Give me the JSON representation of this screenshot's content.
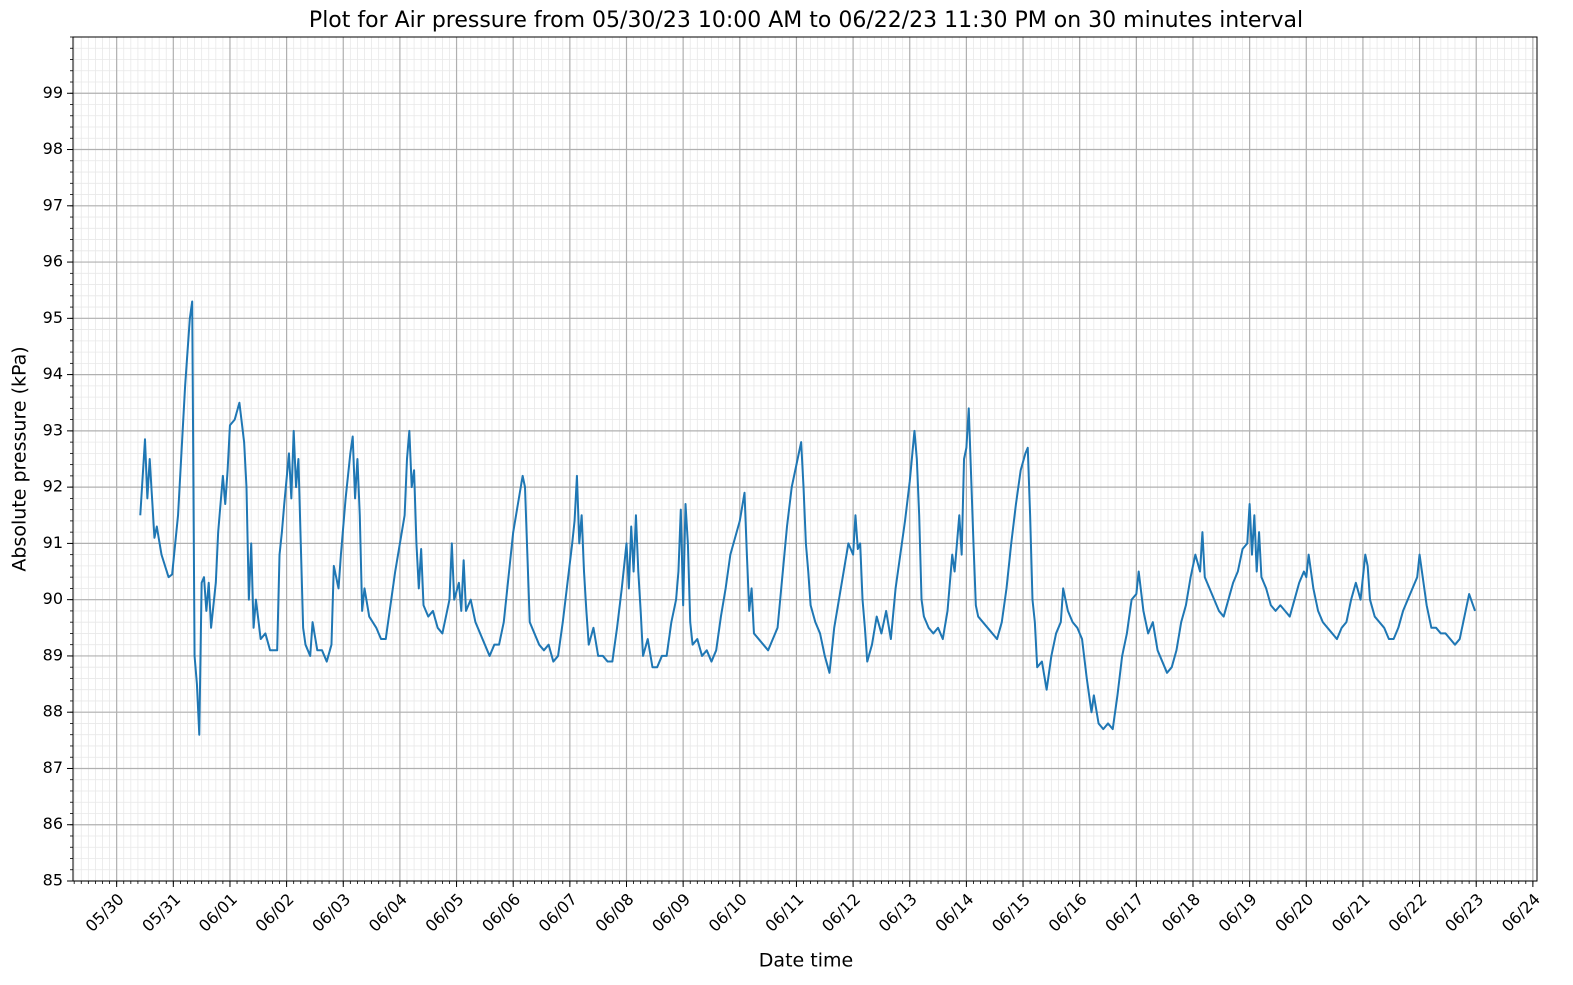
{
  "chart_data": {
    "type": "line",
    "title": "Plot for Air pressure from 05/30/23 10:00 AM to 06/22/23 11:30 PM on 30 minutes interval",
    "x_label": "Date time",
    "y_label": "Absolute pressure (kPa)",
    "color": "#1f77b4",
    "grid": true,
    "minor_grid": true,
    "xlim": [
      "05/29 05:30",
      "06/24 01:45"
    ],
    "xticks": [
      "05/30",
      "05/31",
      "06/01",
      "06/02",
      "06/03",
      "06/04",
      "06/05",
      "06/06",
      "06/07",
      "06/08",
      "06/09",
      "06/10",
      "06/11",
      "06/12",
      "06/13",
      "06/14",
      "06/15",
      "06/16",
      "06/17",
      "06/18",
      "06/19",
      "06/20",
      "06/21",
      "06/22",
      "06/23",
      "06/24"
    ],
    "ylim": [
      85,
      100
    ],
    "yticks": [
      85,
      86,
      87,
      88,
      89,
      90,
      91,
      92,
      93,
      94,
      95,
      96,
      97,
      98,
      99
    ],
    "x": [
      "05/30 10:00",
      "05/30 12:00",
      "05/30 13:00",
      "05/30 14:00",
      "05/30 16:00",
      "05/30 17:00",
      "05/30 19:00",
      "05/30 22:00",
      "05/30 23:30",
      "05/31 02:00",
      "05/31 05:00",
      "05/31 07:00",
      "05/31 08:00",
      "05/31 09:00",
      "05/31 10:00",
      "05/31 11:00",
      "05/31 12:00",
      "05/31 13:00",
      "05/31 14:00",
      "05/31 15:00",
      "05/31 16:00",
      "05/31 18:00",
      "05/31 19:00",
      "05/31 21:00",
      "05/31 22:00",
      "05/31 23:00",
      "06/01 00:00",
      "06/01 02:00",
      "06/01 04:00",
      "06/01 06:00",
      "06/01 07:00",
      "06/01 08:00",
      "06/01 09:00",
      "06/01 10:00",
      "06/01 11:00",
      "06/01 13:00",
      "06/01 15:00",
      "06/01 17:00",
      "06/01 20:00",
      "06/01 21:00",
      "06/01 22:00",
      "06/01 23:00",
      "06/02 01:00",
      "06/02 02:00",
      "06/02 03:00",
      "06/02 04:00",
      "06/02 05:00",
      "06/02 06:00",
      "06/02 07:00",
      "06/02 08:00",
      "06/02 10:00",
      "06/02 11:00",
      "06/02 13:00",
      "06/02 15:00",
      "06/02 17:00",
      "06/02 19:00",
      "06/02 20:00",
      "06/02 22:00",
      "06/02 23:00",
      "06/03 01:00",
      "06/03 03:00",
      "06/03 04:00",
      "06/03 05:00",
      "06/03 06:00",
      "06/03 07:00",
      "06/03 08:00",
      "06/03 09:00",
      "06/03 11:00",
      "06/03 14:00",
      "06/03 16:00",
      "06/03 18:00",
      "06/03 20:00",
      "06/03 22:00",
      "06/04 00:00",
      "06/04 02:00",
      "06/04 03:00",
      "06/04 04:00",
      "06/04 05:00",
      "06/04 06:00",
      "06/04 07:00",
      "06/04 08:00",
      "06/04 09:00",
      "06/04 10:00",
      "06/04 12:00",
      "06/04 14:00",
      "06/04 16:00",
      "06/04 18:00",
      "06/04 21:00",
      "06/04 22:00",
      "06/04 23:00",
      "06/05 01:00",
      "06/05 02:00",
      "06/05 03:00",
      "06/05 04:00",
      "06/05 06:00",
      "06/05 08:00",
      "06/05 10:00",
      "06/05 12:00",
      "06/05 14:00",
      "06/05 16:00",
      "06/05 18:00",
      "06/05 20:00",
      "06/05 22:00",
      "06/06 00:00",
      "06/06 02:00",
      "06/06 04:00",
      "06/06 05:00",
      "06/06 06:00",
      "06/06 07:00",
      "06/06 09:00",
      "06/06 11:00",
      "06/06 13:00",
      "06/06 15:00",
      "06/06 17:00",
      "06/06 19:00",
      "06/06 21:00",
      "06/06 23:00",
      "06/07 01:00",
      "06/07 02:00",
      "06/07 03:00",
      "06/07 04:00",
      "06/07 05:00",
      "06/07 06:00",
      "06/07 07:00",
      "06/07 08:00",
      "06/07 10:00",
      "06/07 12:00",
      "06/07 14:00",
      "06/07 16:00",
      "06/07 18:00",
      "06/07 20:00",
      "06/07 22:00",
      "06/08 00:00",
      "06/08 01:00",
      "06/08 02:00",
      "06/08 03:00",
      "06/08 04:00",
      "06/08 05:00",
      "06/08 06:00",
      "06/08 07:00",
      "06/08 09:00",
      "06/08 11:00",
      "06/08 13:00",
      "06/08 15:00",
      "06/08 17:00",
      "06/08 19:00",
      "06/08 21:00",
      "06/08 22:00",
      "06/08 23:00",
      "06/09 00:00",
      "06/09 01:00",
      "06/09 02:00",
      "06/09 03:00",
      "06/09 04:00",
      "06/09 06:00",
      "06/09 08:00",
      "06/09 10:00",
      "06/09 12:00",
      "06/09 14:00",
      "06/09 16:00",
      "06/09 18:00",
      "06/09 20:00",
      "06/09 22:00",
      "06/10 00:00",
      "06/10 02:00",
      "06/10 03:00",
      "06/10 04:00",
      "06/10 05:00",
      "06/10 06:00",
      "06/10 08:00",
      "06/10 10:00",
      "06/10 12:00",
      "06/10 14:00",
      "06/10 16:00",
      "06/10 18:00",
      "06/10 20:00",
      "06/10 22:00",
      "06/11 00:00",
      "06/11 02:00",
      "06/11 03:00",
      "06/11 04:00",
      "06/11 05:00",
      "06/11 06:00",
      "06/11 08:00",
      "06/11 10:00",
      "06/11 12:00",
      "06/11 14:00",
      "06/11 16:00",
      "06/11 18:00",
      "06/11 20:00",
      "06/11 22:00",
      "06/12 00:00",
      "06/12 01:00",
      "06/12 02:00",
      "06/12 03:00",
      "06/12 04:00",
      "06/12 05:00",
      "06/12 06:00",
      "06/12 08:00",
      "06/12 10:00",
      "06/12 12:00",
      "06/12 14:00",
      "06/12 16:00",
      "06/12 18:00",
      "06/12 20:00",
      "06/12 22:00",
      "06/13 00:00",
      "06/13 02:00",
      "06/13 03:00",
      "06/13 04:00",
      "06/13 05:00",
      "06/13 06:00",
      "06/13 08:00",
      "06/13 10:00",
      "06/13 12:00",
      "06/13 14:00",
      "06/13 16:00",
      "06/13 18:00",
      "06/13 19:00",
      "06/13 21:00",
      "06/13 22:00",
      "06/13 23:00",
      "06/14 00:00",
      "06/14 01:00",
      "06/14 02:00",
      "06/14 03:00",
      "06/14 04:00",
      "06/14 05:00",
      "06/14 07:00",
      "06/14 09:00",
      "06/14 11:00",
      "06/14 13:00",
      "06/14 15:00",
      "06/14 17:00",
      "06/14 19:00",
      "06/14 21:00",
      "06/14 23:00",
      "06/15 01:00",
      "06/15 02:00",
      "06/15 03:00",
      "06/15 04:00",
      "06/15 05:00",
      "06/15 06:00",
      "06/15 08:00",
      "06/15 10:00",
      "06/15 12:00",
      "06/15 14:00",
      "06/15 16:00",
      "06/15 17:00",
      "06/15 19:00",
      "06/15 21:00",
      "06/15 23:00",
      "06/16 01:00",
      "06/16 03:00",
      "06/16 05:00",
      "06/16 06:00",
      "06/16 08:00",
      "06/16 10:00",
      "06/16 12:00",
      "06/16 14:00",
      "06/16 15:00",
      "06/16 16:00",
      "06/16 18:00",
      "06/16 20:00",
      "06/16 22:00",
      "06/17 00:00",
      "06/17 01:00",
      "06/17 03:00",
      "06/17 05:00",
      "06/17 07:00",
      "06/17 09:00",
      "06/17 11:00",
      "06/17 13:00",
      "06/17 15:00",
      "06/17 17:00",
      "06/17 19:00",
      "06/17 21:00",
      "06/17 23:00",
      "06/18 01:00",
      "06/18 03:00",
      "06/18 04:00",
      "06/18 05:00",
      "06/18 07:00",
      "06/18 09:00",
      "06/18 11:00",
      "06/18 13:00",
      "06/18 15:00",
      "06/18 17:00",
      "06/18 19:00",
      "06/18 21:00",
      "06/18 23:00",
      "06/19 00:00",
      "06/19 01:00",
      "06/19 02:00",
      "06/19 03:00",
      "06/19 04:00",
      "06/19 05:00",
      "06/19 07:00",
      "06/19 09:00",
      "06/19 11:00",
      "06/19 13:00",
      "06/19 15:00",
      "06/19 17:00",
      "06/19 19:00",
      "06/19 21:00",
      "06/19 23:00",
      "06/20 00:00",
      "06/20 01:00",
      "06/20 03:00",
      "06/20 05:00",
      "06/20 07:00",
      "06/20 09:00",
      "06/20 11:00",
      "06/20 13:00",
      "06/20 15:00",
      "06/20 17:00",
      "06/20 19:00",
      "06/20 21:00",
      "06/20 23:00",
      "06/21 01:00",
      "06/21 02:00",
      "06/21 03:00",
      "06/21 05:00",
      "06/21 07:00",
      "06/21 09:00",
      "06/21 11:00",
      "06/21 13:00",
      "06/21 15:00",
      "06/21 17:00",
      "06/21 19:00",
      "06/21 21:00",
      "06/21 23:00",
      "06/22 00:00",
      "06/22 01:00",
      "06/22 03:00",
      "06/22 05:00",
      "06/22 07:00",
      "06/22 09:00",
      "06/22 11:00",
      "06/22 13:00",
      "06/22 15:00",
      "06/22 17:00",
      "06/22 19:00",
      "06/22 21:00",
      "06/22 23:30"
    ],
    "values": [
      91.5,
      92.85,
      91.8,
      92.5,
      91.1,
      91.3,
      90.8,
      90.4,
      90.45,
      91.5,
      93.8,
      95.0,
      95.3,
      89.0,
      88.5,
      87.6,
      90.3,
      90.4,
      89.8,
      90.3,
      89.5,
      90.3,
      91.2,
      92.2,
      91.7,
      92.3,
      93.1,
      93.2,
      93.5,
      92.8,
      92.0,
      90.0,
      91.0,
      89.5,
      90.0,
      89.3,
      89.4,
      89.1,
      89.1,
      90.8,
      91.2,
      91.7,
      92.6,
      91.8,
      93.0,
      92.0,
      92.5,
      91.0,
      89.5,
      89.2,
      89.0,
      89.6,
      89.1,
      89.1,
      88.9,
      89.2,
      90.6,
      90.2,
      90.8,
      91.8,
      92.6,
      92.9,
      91.8,
      92.5,
      91.5,
      89.8,
      90.2,
      89.7,
      89.5,
      89.3,
      89.3,
      89.9,
      90.5,
      91.0,
      91.5,
      92.5,
      93.0,
      92.0,
      92.3,
      91.0,
      90.2,
      90.9,
      89.9,
      89.7,
      89.8,
      89.5,
      89.4,
      90.0,
      91.0,
      90.0,
      90.3,
      89.8,
      90.7,
      89.8,
      90.0,
      89.6,
      89.4,
      89.2,
      89.0,
      89.2,
      89.2,
      89.6,
      90.4,
      91.2,
      91.7,
      92.2,
      92.0,
      90.8,
      89.6,
      89.4,
      89.2,
      89.1,
      89.2,
      88.9,
      89.0,
      89.6,
      90.3,
      91.0,
      91.4,
      92.2,
      91.0,
      91.5,
      90.5,
      89.8,
      89.2,
      89.5,
      89.0,
      89.0,
      88.9,
      88.9,
      89.5,
      90.2,
      91.0,
      90.2,
      91.3,
      90.5,
      91.5,
      90.5,
      89.8,
      89.0,
      89.3,
      88.8,
      88.8,
      89.0,
      89.0,
      89.6,
      90.0,
      90.5,
      91.6,
      89.9,
      91.7,
      91.0,
      89.6,
      89.2,
      89.3,
      89.0,
      89.1,
      88.9,
      89.1,
      89.7,
      90.2,
      90.8,
      91.1,
      91.4,
      91.9,
      90.8,
      89.8,
      90.2,
      89.4,
      89.3,
      89.2,
      89.1,
      89.3,
      89.5,
      90.4,
      91.3,
      92.0,
      92.4,
      92.8,
      92.0,
      91.0,
      90.5,
      89.9,
      89.6,
      89.4,
      89.0,
      88.7,
      89.5,
      90.0,
      90.5,
      91.0,
      90.8,
      91.5,
      90.9,
      91.0,
      90.0,
      89.5,
      88.9,
      89.2,
      89.7,
      89.4,
      89.8,
      89.3,
      90.2,
      90.8,
      91.4,
      92.1,
      93.0,
      92.5,
      91.5,
      90.0,
      89.7,
      89.5,
      89.4,
      89.5,
      89.3,
      89.8,
      90.8,
      90.5,
      91.5,
      90.8,
      92.5,
      92.7,
      93.4,
      92.2,
      91.0,
      89.9,
      89.7,
      89.6,
      89.5,
      89.4,
      89.3,
      89.6,
      90.2,
      91.0,
      91.7,
      92.3,
      92.6,
      92.7,
      91.5,
      90.0,
      89.6,
      88.8,
      88.9,
      88.4,
      89.0,
      89.4,
      89.6,
      90.2,
      89.8,
      89.6,
      89.5,
      89.3,
      88.6,
      88.0,
      88.3,
      87.8,
      87.7,
      87.8,
      87.7,
      88.0,
      88.3,
      89.0,
      89.4,
      90.0,
      90.1,
      90.5,
      89.8,
      89.4,
      89.6,
      89.1,
      88.9,
      88.7,
      88.8,
      89.1,
      89.6,
      89.9,
      90.4,
      90.8,
      90.5,
      91.2,
      90.4,
      90.2,
      90.0,
      89.8,
      89.7,
      90.0,
      90.3,
      90.5,
      90.9,
      91.0,
      91.7,
      90.8,
      91.5,
      90.5,
      91.2,
      90.4,
      90.2,
      89.9,
      89.8,
      89.9,
      89.8,
      89.7,
      90.0,
      90.3,
      90.5,
      90.4,
      90.8,
      90.2,
      89.8,
      89.6,
      89.5,
      89.4,
      89.3,
      89.5,
      89.6,
      90.0,
      90.3,
      90.0,
      90.8,
      90.6,
      90.0,
      89.7,
      89.6,
      89.5,
      89.3,
      89.3,
      89.5,
      89.8,
      90.0,
      90.2,
      90.4,
      90.8,
      90.5,
      89.9,
      89.5,
      89.5,
      89.4,
      89.4,
      89.3,
      89.2,
      89.3,
      89.7,
      90.1,
      89.8
    ]
  }
}
